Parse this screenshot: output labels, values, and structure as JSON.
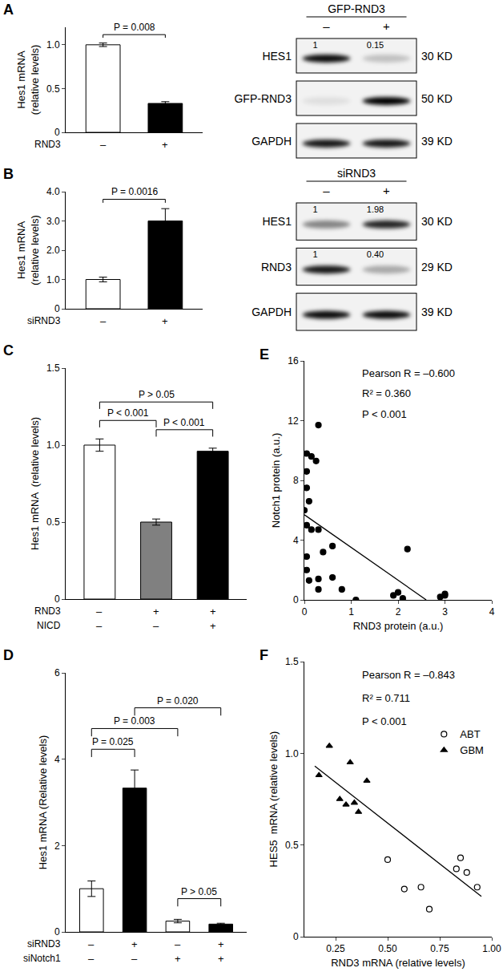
{
  "chart_data": [
    {
      "panel": "A",
      "type": "bar",
      "ylabel": "Hes1 mRNA\n(relative levels)",
      "x_rows": [
        {
          "label": "RND3",
          "values": [
            "–",
            "+"
          ]
        }
      ],
      "values": [
        1.0,
        0.33
      ],
      "errors": [
        0.02,
        0.02
      ],
      "colors": [
        "#ffffff",
        "#000000"
      ],
      "ylim": [
        0,
        1.2
      ],
      "yticks": [
        0,
        0.5,
        {
          "value": 1,
          "label": "1.0"
        }
      ],
      "annotations": [
        {
          "text": "P = 0.008",
          "between": [
            0,
            1
          ]
        }
      ]
    },
    {
      "panel": "B",
      "type": "bar",
      "ylabel": "Hes1 mRNA\n(relative levels)",
      "x_rows": [
        {
          "label": "siRND3",
          "values": [
            "–",
            "+"
          ]
        }
      ],
      "values": [
        1.0,
        3.0
      ],
      "errors": [
        0.08,
        0.42
      ],
      "colors": [
        "#ffffff",
        "#000000"
      ],
      "ylim": [
        0,
        4
      ],
      "yticks": [
        0,
        {
          "value": 1,
          "label": "1.0"
        },
        {
          "value": 2,
          "label": "2.0"
        },
        {
          "value": 3,
          "label": "3.0"
        },
        {
          "value": 4,
          "label": "4.0"
        }
      ],
      "annotations": [
        {
          "text": "P = 0.0016",
          "between": [
            0,
            1
          ]
        }
      ]
    },
    {
      "panel": "C",
      "type": "bar",
      "ylabel": "Hes1 mRNA  (relative levels)",
      "x_rows": [
        {
          "label": "RND3",
          "values": [
            "–",
            "+",
            "+"
          ]
        },
        {
          "label": "NICD",
          "values": [
            "–",
            "–",
            "+"
          ]
        }
      ],
      "values": [
        1.0,
        0.5,
        0.96
      ],
      "errors": [
        0.04,
        0.02,
        0.02
      ],
      "colors": [
        "#ffffff",
        "#808080",
        "#000000"
      ],
      "ylim": [
        0,
        1.5
      ],
      "yticks": [
        0,
        0.5,
        {
          "value": 1,
          "label": "1.0"
        },
        1.5
      ],
      "annotations": [
        {
          "text": "P < 0.001",
          "between": [
            0,
            1
          ]
        },
        {
          "text": "P < 0.001",
          "between": [
            1,
            2
          ]
        },
        {
          "text": "P > 0.05",
          "between": [
            0,
            2
          ]
        }
      ]
    },
    {
      "panel": "D",
      "type": "bar",
      "ylabel": "Hes1 mRNA (Relative levels)",
      "x_rows": [
        {
          "label": "siRND3",
          "values": [
            "–",
            "+",
            "–",
            "+"
          ]
        },
        {
          "label": "siNotch1",
          "values": [
            "–",
            "–",
            "+",
            "+"
          ]
        }
      ],
      "values": [
        1.0,
        3.33,
        0.25,
        0.18
      ],
      "errors": [
        0.18,
        0.42,
        0.04,
        0.02
      ],
      "colors": [
        "#ffffff",
        "#000000",
        "#ffffff",
        "#000000"
      ],
      "ylim": [
        0,
        6
      ],
      "yticks": [
        0,
        2,
        4,
        6
      ],
      "annotations": [
        {
          "text": "P = 0.025",
          "between": [
            0,
            1
          ]
        },
        {
          "text": "P > 0.05",
          "between": [
            2,
            3
          ]
        },
        {
          "text": "P = 0.003",
          "between": [
            0,
            2
          ]
        },
        {
          "text": "P = 0.020",
          "between": [
            1,
            3
          ]
        }
      ]
    },
    {
      "panel": "E",
      "type": "scatter",
      "xlabel": "RND3 protein (a.u.)",
      "ylabel": "Notch1 protein (a.u.)",
      "series": [
        {
          "marker": "circle",
          "color": "#000000",
          "x": [
            0.05,
            0.15,
            0.3,
            0.25,
            0.05,
            0.05,
            0.1,
            0.0,
            0.05,
            0.3,
            0.15,
            0.6,
            0.4,
            0.05,
            0.05,
            0.3,
            0.1,
            0.6,
            0.3,
            0.8,
            1.1,
            1.9,
            2.0,
            2.1,
            2.2,
            2.9,
            3.0,
            3.0
          ],
          "y": [
            9.8,
            9.6,
            11.7,
            9.3,
            8.6,
            7.5,
            6.6,
            6.0,
            5.0,
            4.7,
            4.7,
            3.6,
            3.2,
            2.9,
            2.0,
            1.4,
            1.3,
            1.5,
            0.7,
            0.7,
            0.0,
            0.3,
            0.5,
            0.1,
            3.4,
            0.2,
            0.4,
            0.3
          ]
        }
      ],
      "fit": {
        "x": [
          0,
          2.6
        ],
        "y": [
          5.7,
          0
        ]
      },
      "xlim": [
        0,
        4
      ],
      "xticks": [
        0,
        1,
        2,
        3,
        4
      ],
      "ylim": [
        0,
        16
      ],
      "yticks": [
        0,
        4,
        8,
        12,
        16
      ],
      "annotations": [
        {
          "text": "Pearson R = –0.600"
        },
        {
          "text": "R² = 0.360"
        },
        {
          "text": "P < 0.001"
        }
      ]
    },
    {
      "panel": "F",
      "type": "scatter",
      "xlabel": "RND3 mRNA (relative levels)",
      "ylabel": "HES5  mRNA (relative levels)",
      "legend": "right",
      "series": [
        {
          "name": "ABT",
          "marker": "circle-open",
          "color": "#000000",
          "x": [
            0.5,
            0.58,
            0.66,
            0.7,
            0.83,
            0.85,
            0.88,
            0.93
          ],
          "y": [
            0.42,
            0.26,
            0.27,
            0.15,
            0.37,
            0.43,
            0.35,
            0.27
          ]
        },
        {
          "name": "GBM",
          "marker": "triangle-up",
          "color": "#000000",
          "x": [
            0.17,
            0.22,
            0.27,
            0.3,
            0.32,
            0.34,
            0.36,
            0.4
          ],
          "y": [
            0.88,
            1.04,
            0.75,
            0.72,
            0.95,
            0.73,
            0.68,
            0.85
          ]
        }
      ],
      "fit": {
        "x": [
          0.15,
          0.95
        ],
        "y": [
          0.93,
          0.22
        ]
      },
      "xlim": [
        0.1,
        1.0
      ],
      "xticks": [
        0.25,
        {
          "value": 0.5,
          "label": "0.50"
        },
        0.75,
        {
          "value": 1,
          "label": "1.00"
        }
      ],
      "ylim": [
        0,
        1.5
      ],
      "yticks": [
        0,
        0.5,
        {
          "value": 1,
          "label": "1.0"
        },
        1.5
      ],
      "annotations": [
        {
          "text": "Pearson R = –0.843"
        },
        {
          "text": "R² = 0.711"
        },
        {
          "text": "P < 0.001"
        }
      ]
    }
  ],
  "blots": [
    {
      "header": "GFP-RND3",
      "lanes": [
        "–",
        "+"
      ],
      "rows": [
        {
          "label": "HES1",
          "quant": [
            "1",
            "0.15"
          ],
          "size": "30 KD",
          "signal": [
            0.95,
            0.2
          ]
        },
        {
          "label": "GFP-RND3",
          "size": "50 KD",
          "signal": [
            0.08,
            1.0
          ]
        },
        {
          "label": "GAPDH",
          "size": "39 KD",
          "signal": [
            0.9,
            0.9
          ]
        }
      ]
    },
    {
      "header": "siRND3",
      "lanes": [
        "–",
        "+"
      ],
      "rows": [
        {
          "label": "HES1",
          "quant": [
            "1",
            "1.98"
          ],
          "size": "30 KD",
          "signal": [
            0.45,
            0.85
          ]
        },
        {
          "label": "RND3",
          "quant": [
            "1",
            "0.40"
          ],
          "size": "29 KD",
          "signal": [
            0.9,
            0.3
          ]
        },
        {
          "label": "GAPDH",
          "size": "39 KD",
          "signal": [
            0.95,
            0.95
          ]
        }
      ]
    }
  ]
}
